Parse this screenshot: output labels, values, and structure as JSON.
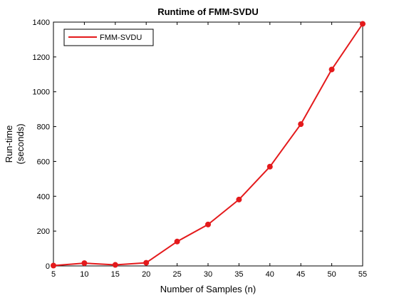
{
  "chart_data": {
    "type": "line",
    "title": "Runtime of FMM-SVDU",
    "xlabel": "Number of Samples (n)",
    "ylabel_lines": [
      "Run-time",
      "(seconds)"
    ],
    "xlim": [
      5,
      55
    ],
    "ylim": [
      0,
      1400
    ],
    "xticks": [
      5,
      10,
      15,
      20,
      25,
      30,
      35,
      40,
      45,
      50,
      55
    ],
    "yticks": [
      0,
      200,
      400,
      600,
      800,
      1000,
      1200,
      1400
    ],
    "grid": false,
    "legend_position": "top-left",
    "series": [
      {
        "name": "FMM-SVDU",
        "color": "#e41a1c",
        "marker": "circle",
        "x": [
          5,
          10,
          15,
          20,
          25,
          30,
          35,
          40,
          45,
          50,
          55
        ],
        "y": [
          2,
          16,
          6,
          18,
          140,
          238,
          381,
          570,
          814,
          1128,
          1390
        ]
      }
    ]
  }
}
